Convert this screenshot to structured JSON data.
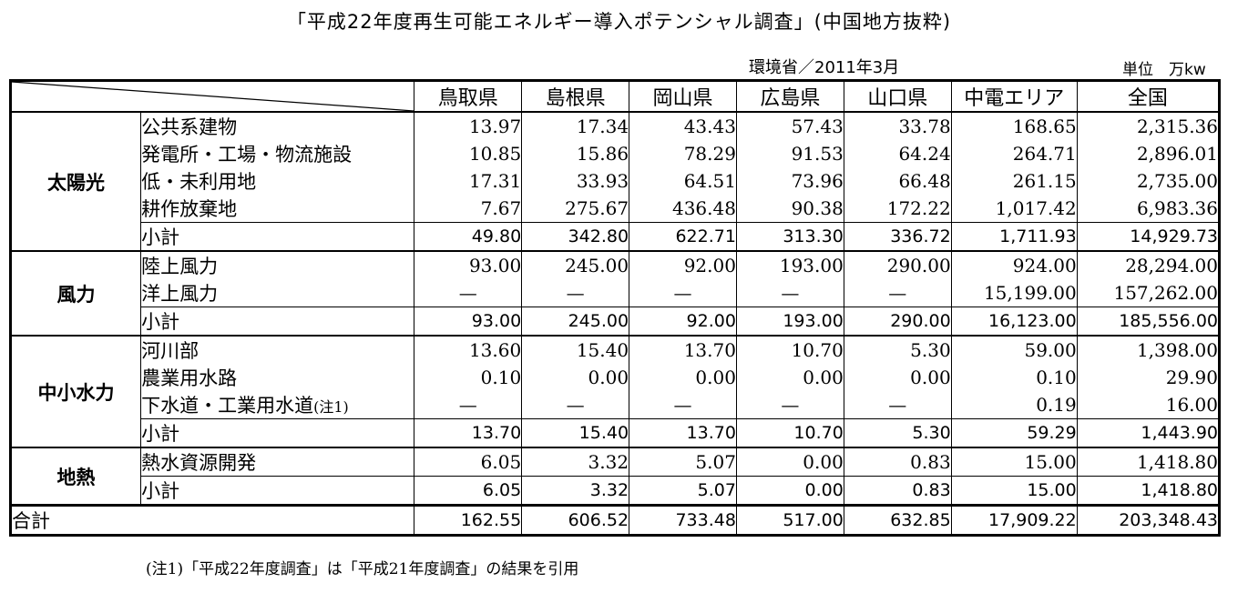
{
  "title": "「平成22年度再生可能エネルギー導入ポテンシャル調査」(中国地方抜粋)",
  "source": "環境省／2011年3月",
  "unit": "単位　万kw",
  "columns": [
    "鳥取県",
    "島根県",
    "岡山県",
    "広島県",
    "山口県",
    "中電エリア",
    "全国"
  ],
  "categories": {
    "solar": {
      "label": "太陽光",
      "items": [
        {
          "label": "公共系建物",
          "values": [
            "13.97",
            "17.34",
            "43.43",
            "57.43",
            "33.78",
            "168.65",
            "2,315.36"
          ]
        },
        {
          "label": "発電所・工場・物流施設",
          "values": [
            "10.85",
            "15.86",
            "78.29",
            "91.53",
            "64.24",
            "264.71",
            "2,896.01"
          ]
        },
        {
          "label": "低・未利用地",
          "values": [
            "17.31",
            "33.93",
            "64.51",
            "73.96",
            "66.48",
            "261.15",
            "2,735.00"
          ]
        },
        {
          "label": "耕作放棄地",
          "values": [
            "7.67",
            "275.67",
            "436.48",
            "90.38",
            "172.22",
            "1,017.42",
            "6,983.36"
          ]
        }
      ],
      "subtotal": {
        "label": "小計",
        "values": [
          "49.80",
          "342.80",
          "622.71",
          "313.30",
          "336.72",
          "1,711.93",
          "14,929.73"
        ]
      }
    },
    "wind": {
      "label": "風力",
      "items": [
        {
          "label": "陸上風力",
          "values": [
            "93.00",
            "245.00",
            "92.00",
            "193.00",
            "290.00",
            "924.00",
            "28,294.00"
          ]
        },
        {
          "label": "洋上風力",
          "values": [
            "—",
            "—",
            "—",
            "—",
            "—",
            "15,199.00",
            "157,262.00"
          ]
        }
      ],
      "subtotal": {
        "label": "小計",
        "values": [
          "93.00",
          "245.00",
          "92.00",
          "193.00",
          "290.00",
          "16,123.00",
          "185,556.00"
        ]
      }
    },
    "hydro": {
      "label": "中小水力",
      "items": [
        {
          "label": "河川部",
          "values": [
            "13.60",
            "15.40",
            "13.70",
            "10.70",
            "5.30",
            "59.00",
            "1,398.00"
          ]
        },
        {
          "label": "農業用水路",
          "values": [
            "0.10",
            "0.00",
            "0.00",
            "0.00",
            "0.00",
            "0.10",
            "29.90"
          ]
        },
        {
          "label": "下水道・工業用水道",
          "note": "(注1)",
          "values": [
            "—",
            "—",
            "—",
            "—",
            "—",
            "0.19",
            "16.00"
          ]
        }
      ],
      "subtotal": {
        "label": "小計",
        "values": [
          "13.70",
          "15.40",
          "13.70",
          "10.70",
          "5.30",
          "59.29",
          "1,443.90"
        ]
      }
    },
    "geo": {
      "label": "地熱",
      "items": [
        {
          "label": "熱水資源開発",
          "values": [
            "6.05",
            "3.32",
            "5.07",
            "0.00",
            "0.83",
            "15.00",
            "1,418.80"
          ]
        }
      ],
      "subtotal": {
        "label": "小計",
        "values": [
          "6.05",
          "3.32",
          "5.07",
          "0.00",
          "0.83",
          "15.00",
          "1,418.80"
        ]
      }
    }
  },
  "total": {
    "label": "合計",
    "values": [
      "162.55",
      "606.52",
      "733.48",
      "517.00",
      "632.85",
      "17,909.22",
      "203,348.43"
    ]
  },
  "footnote": "(注1)「平成22年度調査」は「平成21年度調査」の結果を引用"
}
